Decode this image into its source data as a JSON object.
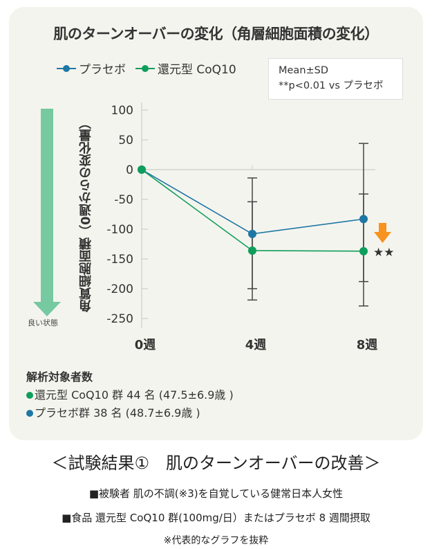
{
  "title": "肌のターンオーバーの変化（角層細胞面積の変化）",
  "legend": [
    {
      "label": "プラセボ",
      "color": "#1f77a4"
    },
    {
      "label": "還元型 CoQ10",
      "color": "#0e9e5c"
    }
  ],
  "note": {
    "line1": "Mean±SD",
    "line2": "**p<0.01 vs プラセボ"
  },
  "good_direction_label": "良い状態",
  "colors": {
    "arrow_green": "#76c9a0",
    "highlight_arrow": "#f7931e",
    "card_bg": "#f4f4ee"
  },
  "chart_data": {
    "type": "line",
    "title": "肌のターンオーバーの変化（角層細胞面積の変化）",
    "ylabel": "角質細胞面積（0週からの変化量）",
    "xlabel": "",
    "categories": [
      "0週",
      "4週",
      "8週"
    ],
    "ylim": [
      -260,
      110
    ],
    "yticks": [
      100,
      50,
      0,
      -50,
      -100,
      -150,
      -200,
      -250
    ],
    "grid": "zero-line only",
    "legend_placement": "top-left",
    "series": [
      {
        "name": "プラセボ",
        "color": "#1f77a4",
        "values": [
          0,
          -108,
          -83
        ],
        "error_upper": [
          null,
          -14,
          44
        ],
        "error_lower": [
          null,
          -200,
          -188
        ]
      },
      {
        "name": "還元型 CoQ10",
        "color": "#0e9e5c",
        "values": [
          0,
          -136,
          -137
        ],
        "error_upper": [
          null,
          -54,
          -41
        ],
        "error_lower": [
          null,
          -219,
          -229
        ]
      }
    ],
    "annotations": [
      {
        "text": "★★",
        "category": "8週",
        "series": "還元型 CoQ10"
      }
    ]
  },
  "counts": {
    "heading": "解析対象者数",
    "items": [
      {
        "text": "還元型 CoQ10 群 44 名 (47.5±6.9歳 )",
        "color": "#0e9e5c"
      },
      {
        "text": "プラセボ群 38 名 (48.7±6.9歳 )",
        "color": "#1f77a4"
      }
    ]
  },
  "result_title": "＜試験結果①　肌のターンオーバーの改善＞",
  "footnotes": [
    "■被験者 肌の不調(※3)を自覚している健常日本人女性",
    "■食品 還元型 CoQ10 群(100mg/日）またはプラセボ 8 週間摂取",
    "※代表的なグラフを抜粋"
  ]
}
